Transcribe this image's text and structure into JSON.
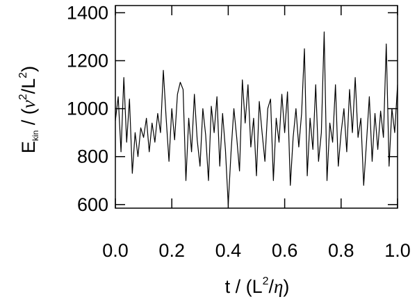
{
  "chart_data": {
    "type": "line",
    "x_label_parts": [
      "t / (L",
      "2",
      "/",
      "η",
      ")"
    ],
    "y_label_parts": [
      "E",
      "kin",
      " / (",
      "ν",
      "2",
      "/L",
      "2",
      ")"
    ],
    "x": [
      0,
      0.01,
      0.02,
      0.03,
      0.04,
      0.05,
      0.06,
      0.07,
      0.08,
      0.09,
      0.1,
      0.11,
      0.12,
      0.13,
      0.14,
      0.15,
      0.16,
      0.17,
      0.18,
      0.19,
      0.2,
      0.21,
      0.22,
      0.23,
      0.24,
      0.25,
      0.26,
      0.27,
      0.28,
      0.29,
      0.3,
      0.31,
      0.32,
      0.33,
      0.34,
      0.35,
      0.36,
      0.37,
      0.38,
      0.39,
      0.4,
      0.41,
      0.42,
      0.43,
      0.44,
      0.45,
      0.46,
      0.47,
      0.48,
      0.49,
      0.5,
      0.51,
      0.52,
      0.53,
      0.54,
      0.55,
      0.56,
      0.57,
      0.58,
      0.59,
      0.6,
      0.61,
      0.62,
      0.63,
      0.64,
      0.65,
      0.66,
      0.67,
      0.68,
      0.69,
      0.7,
      0.71,
      0.72,
      0.73,
      0.74,
      0.75,
      0.76,
      0.77,
      0.78,
      0.79,
      0.8,
      0.81,
      0.82,
      0.83,
      0.84,
      0.85,
      0.86,
      0.87,
      0.88,
      0.89,
      0.9,
      0.91,
      0.92,
      0.93,
      0.94,
      0.95,
      0.96,
      0.97,
      0.98,
      0.99,
      1
    ],
    "series": [
      {
        "color": "#000000",
        "values": [
          950,
          1050,
          820,
          1130,
          860,
          1040,
          730,
          900,
          800,
          920,
          880,
          960,
          820,
          940,
          860,
          980,
          900,
          1160,
          960,
          780,
          1000,
          870,
          1060,
          1110,
          1080,
          700,
          960,
          820,
          1060,
          870,
          760,
          1000,
          890,
          700,
          1010,
          900,
          1050,
          760,
          980,
          830,
          600,
          820,
          1000,
          880,
          740,
          1120,
          940,
          1100,
          840,
          960,
          720,
          1030,
          900,
          780,
          1000,
          1040,
          700,
          960,
          860,
          1060,
          900,
          1070,
          680,
          880,
          1000,
          840,
          980,
          1250,
          720,
          960,
          830,
          1100,
          780,
          900,
          1320,
          700,
          940,
          860,
          1100,
          760,
          900,
          1000,
          820,
          1080,
          900,
          1130,
          880,
          960,
          680,
          860,
          1050,
          780,
          980,
          830,
          990,
          880,
          1270,
          760,
          1000,
          900,
          1100
        ]
      }
    ],
    "xlim": [
      0,
      1
    ],
    "xticks": [
      {
        "value": 0,
        "label": "0.0"
      },
      0.2,
      0.4,
      0.6,
      0.8,
      {
        "value": 1,
        "label": "1.0"
      }
    ],
    "ylim": [
      585,
      1430
    ],
    "yticks": [
      600,
      800,
      1000,
      1200,
      1400
    ]
  }
}
